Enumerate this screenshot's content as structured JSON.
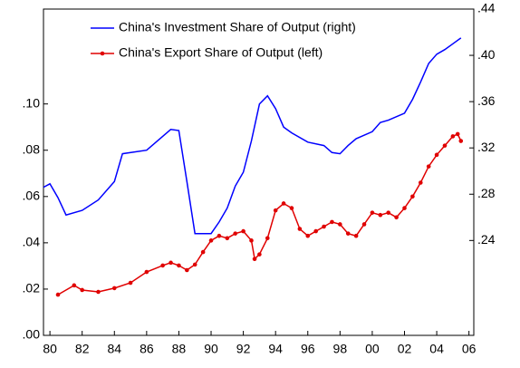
{
  "chart_data": {
    "type": "line",
    "xlim": [
      1979.6,
      2006.3
    ],
    "xticks": [
      {
        "value": 1980,
        "label": "80"
      },
      {
        "value": 1982,
        "label": "82"
      },
      {
        "value": 1984,
        "label": "84"
      },
      {
        "value": 1986,
        "label": "86"
      },
      {
        "value": 1988,
        "label": "88"
      },
      {
        "value": 1990,
        "label": "90"
      },
      {
        "value": 1992,
        "label": "92"
      },
      {
        "value": 1994,
        "label": "94"
      },
      {
        "value": 1996,
        "label": "96"
      },
      {
        "value": 1998,
        "label": "98"
      },
      {
        "value": 2000,
        "label": "00"
      },
      {
        "value": 2002,
        "label": "02"
      },
      {
        "value": 2004,
        "label": "04"
      },
      {
        "value": 2006,
        "label": "06"
      }
    ],
    "ylim": [
      0,
      0.141
    ],
    "yticks": [
      {
        "value": 0,
        "label": ".00"
      },
      {
        "value": 0.02,
        "label": ".02"
      },
      {
        "value": 0.04,
        "label": ".04"
      },
      {
        "value": 0.06,
        "label": ".06"
      },
      {
        "value": 0.08,
        "label": ".08"
      },
      {
        "value": 0.1,
        "label": ".10"
      }
    ],
    "y2lim": [
      0.158,
      0.44
    ],
    "y2ticks": [
      {
        "value": 0.24,
        "label": ".24"
      },
      {
        "value": 0.28,
        "label": ".28"
      },
      {
        "value": 0.32,
        "label": ".32"
      },
      {
        "value": 0.36,
        "label": ".36"
      },
      {
        "value": 0.4,
        "label": ".40"
      },
      {
        "value": 0.44,
        "label": ".44"
      }
    ],
    "legend": "top",
    "series": [
      {
        "name": "China's Investment Share of Output (right)",
        "color": "#0000ff",
        "axis": "y2",
        "markers": false,
        "x": [
          1979.6,
          1980,
          1980.5,
          1981,
          1982,
          1983,
          1984,
          1984.5,
          1986,
          1987,
          1987.5,
          1988,
          1988.5,
          1989,
          1990,
          1990.5,
          1991,
          1991.5,
          1992,
          1992.5,
          1993,
          1993.5,
          1994,
          1994.5,
          1995,
          1996,
          1997,
          1997.5,
          1998,
          1998.5,
          1999,
          2000,
          2000.5,
          2001,
          2002,
          2002.5,
          2003,
          2003.5,
          2004,
          2004.5,
          2005,
          2005.5
        ],
        "values": [
          0.286,
          0.289,
          0.277,
          0.262,
          0.266,
          0.275,
          0.291,
          0.315,
          0.318,
          0.33,
          0.336,
          0.335,
          0.291,
          0.246,
          0.246,
          0.256,
          0.268,
          0.287,
          0.299,
          0.326,
          0.358,
          0.365,
          0.354,
          0.338,
          0.333,
          0.325,
          0.322,
          0.316,
          0.315,
          0.322,
          0.328,
          0.334,
          0.342,
          0.344,
          0.35,
          0.362,
          0.377,
          0.393,
          0.401,
          0.405,
          0.41,
          0.415
        ]
      },
      {
        "name": "China's Export Share of Output (left)",
        "color": "#e00000",
        "markers": true,
        "x": [
          1980.5,
          1981.5,
          1982,
          1983,
          1984,
          1985,
          1986,
          1987,
          1987.5,
          1988,
          1988.5,
          1989,
          1989.5,
          1990,
          1990.5,
          1991,
          1991.5,
          1992,
          1992.5,
          1992.7,
          1993,
          1993.5,
          1994,
          1994.5,
          1995,
          1995.5,
          1996,
          1996.5,
          1997,
          1997.5,
          1998,
          1998.5,
          1999,
          1999.5,
          2000,
          2000.5,
          2001,
          2001.5,
          2002,
          2002.5,
          2003,
          2003.5,
          2004,
          2004.5,
          2005,
          2005.3,
          2005.5
        ],
        "values": [
          0.0176,
          0.0216,
          0.0196,
          0.0188,
          0.0204,
          0.0227,
          0.0274,
          0.0302,
          0.0314,
          0.0302,
          0.0282,
          0.0306,
          0.036,
          0.041,
          0.043,
          0.042,
          0.044,
          0.045,
          0.041,
          0.033,
          0.035,
          0.042,
          0.054,
          0.057,
          0.055,
          0.046,
          0.043,
          0.045,
          0.047,
          0.049,
          0.048,
          0.044,
          0.043,
          0.048,
          0.053,
          0.052,
          0.053,
          0.051,
          0.055,
          0.06,
          0.066,
          0.073,
          0.078,
          0.082,
          0.086,
          0.087,
          0.084
        ]
      }
    ]
  }
}
